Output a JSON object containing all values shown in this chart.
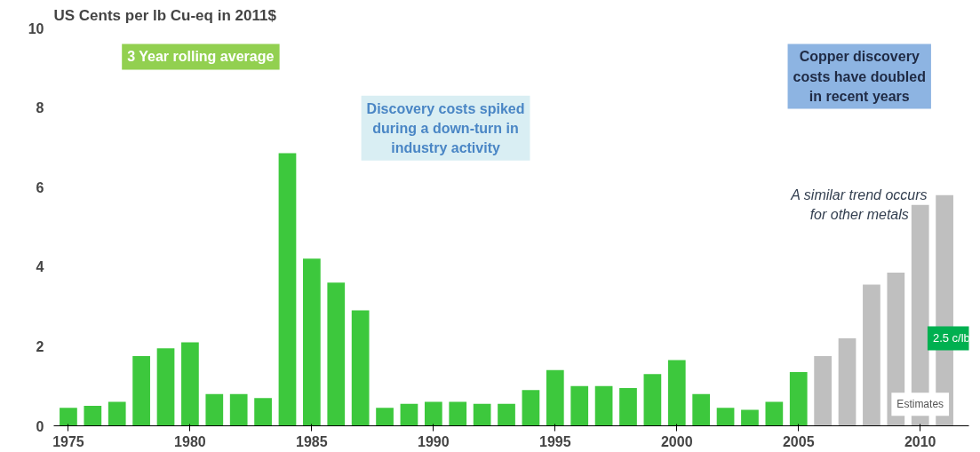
{
  "chart_data": {
    "type": "bar",
    "title": "US Cents per lb Cu-eq in 2011$",
    "x": [
      1975,
      1976,
      1977,
      1978,
      1979,
      1980,
      1981,
      1982,
      1983,
      1984,
      1985,
      1986,
      1987,
      1988,
      1989,
      1990,
      1991,
      1992,
      1993,
      1994,
      1995,
      1996,
      1997,
      1998,
      1999,
      2000,
      2001,
      2002,
      2003,
      2004,
      2005,
      2006,
      2007,
      2008,
      2009,
      2010,
      2011
    ],
    "values": [
      0.45,
      0.5,
      0.6,
      1.75,
      1.95,
      2.1,
      0.8,
      0.8,
      0.7,
      6.85,
      4.2,
      3.6,
      2.9,
      0.45,
      0.55,
      0.6,
      0.6,
      0.55,
      0.55,
      0.9,
      1.4,
      1.0,
      1.0,
      0.95,
      1.3,
      1.65,
      0.8,
      0.45,
      0.4,
      0.6,
      1.35,
      1.75,
      2.2,
      3.55,
      3.85,
      5.55,
      5.8
    ],
    "colors": [
      "#3dc83d",
      "#3dc83d",
      "#3dc83d",
      "#3dc83d",
      "#3dc83d",
      "#3dc83d",
      "#3dc83d",
      "#3dc83d",
      "#3dc83d",
      "#3dc83d",
      "#3dc83d",
      "#3dc83d",
      "#3dc83d",
      "#3dc83d",
      "#3dc83d",
      "#3dc83d",
      "#3dc83d",
      "#3dc83d",
      "#3dc83d",
      "#3dc83d",
      "#3dc83d",
      "#3dc83d",
      "#3dc83d",
      "#3dc83d",
      "#3dc83d",
      "#3dc83d",
      "#3dc83d",
      "#3dc83d",
      "#3dc83d",
      "#3dc83d",
      "#3dc83d",
      "#bfbfbf",
      "#bfbfbf",
      "#bfbfbf",
      "#bfbfbf",
      "#bfbfbf",
      "#bfbfbf"
    ],
    "xlim": [
      1974.4,
      2012
    ],
    "xticks": [
      1975,
      1980,
      1985,
      1990,
      1995,
      2000,
      2005,
      2010
    ],
    "ylim": [
      0,
      10
    ],
    "yticks": [
      0,
      2,
      4,
      6,
      8,
      10
    ],
    "grid": false,
    "annotations": [
      "3 Year rolling average",
      "Discovery costs spiked\nduring a down-turn in\nindustry activity",
      "Copper discovery\ncosts have doubled\nin recent years",
      "A similar trend occurs\nfor other metals",
      "Estimates",
      "2.5 c/lb"
    ]
  }
}
